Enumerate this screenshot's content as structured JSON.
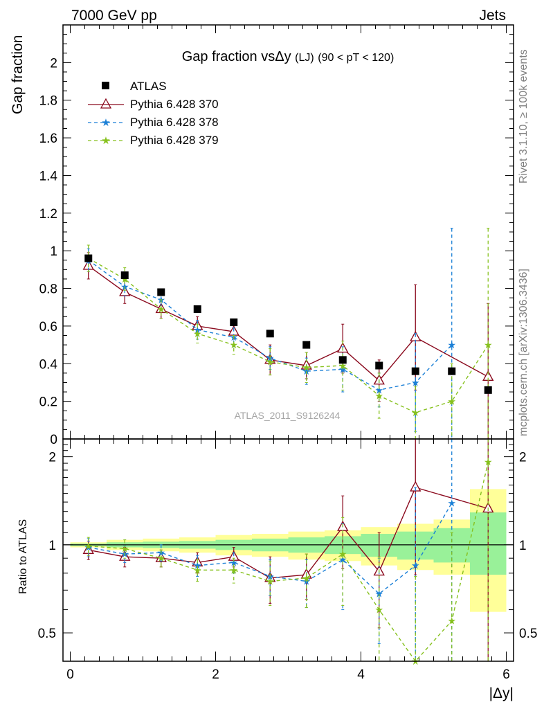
{
  "header": {
    "left": "7000 GeV pp",
    "right": "Jets"
  },
  "side_labels": {
    "rivet": "Rivet 3.1.10, ≥ 100k events",
    "mcplots": "mcplots.cern.ch [arXiv:1306.3436]"
  },
  "colors": {
    "atlas": "#000000",
    "p370": "#8b0a1e",
    "p378": "#1a7fd6",
    "p379": "#86c11d",
    "band_outer": "#ffff99",
    "band_inner": "#99f199"
  },
  "chart_data": [
    {
      "type": "scatter",
      "title": "Gap fraction vsΔy",
      "title_extra": "(LJ)",
      "title_range": "(90 < pT < 120)",
      "watermark": "ATLAS_2011_S9126244",
      "ylabel": "Gap fraction",
      "xlim": [
        -0.1,
        6.1
      ],
      "ylim": [
        0,
        2.2
      ],
      "y_ticks": [
        "0",
        "0.2",
        "0.4",
        "0.6",
        "0.8",
        "1",
        "1.2",
        "1.4",
        "1.6",
        "1.8",
        "2"
      ],
      "x": [
        0.25,
        0.75,
        1.25,
        1.75,
        2.25,
        2.75,
        3.25,
        3.75,
        4.25,
        4.75,
        5.25,
        5.75
      ],
      "series": [
        {
          "name": "ATLAS",
          "values": [
            0.96,
            0.87,
            0.78,
            0.69,
            0.62,
            0.56,
            0.5,
            0.42,
            0.39,
            0.36,
            0.36,
            0.26
          ]
        },
        {
          "name": "Pythia 6.428 370",
          "values": [
            0.92,
            0.78,
            0.69,
            0.6,
            0.57,
            0.42,
            0.39,
            0.48,
            0.31,
            0.54,
            null,
            0.33
          ],
          "err": [
            0.07,
            0.06,
            0.05,
            0.05,
            0.04,
            0.08,
            0.07,
            0.13,
            0.11,
            0.28,
            null,
            0.39
          ]
        },
        {
          "name": "Pythia 6.428 378",
          "values": [
            0.95,
            0.81,
            0.74,
            0.58,
            0.54,
            0.43,
            0.36,
            0.37,
            0.26,
            0.3,
            0.5,
            null
          ],
          "err": [
            0.06,
            0.05,
            0.05,
            0.05,
            0.05,
            0.06,
            0.07,
            0.12,
            0.09,
            0.26,
            0.62,
            null
          ]
        },
        {
          "name": "Pythia 6.428 379",
          "values": [
            0.96,
            0.85,
            0.69,
            0.56,
            0.5,
            0.41,
            0.38,
            0.39,
            0.23,
            0.14,
            0.2,
            0.5
          ],
          "err": [
            0.07,
            0.06,
            0.05,
            0.05,
            0.05,
            0.07,
            0.08,
            0.13,
            0.12,
            0.14,
            0.2,
            0.62
          ]
        }
      ]
    },
    {
      "type": "scatter",
      "xlabel": "|Δy|",
      "ylabel": "Ratio to ATLAS",
      "xlim": [
        -0.1,
        6.1
      ],
      "ylim": [
        0.4,
        2.3
      ],
      "x_ticks": [
        "0",
        "2",
        "4",
        "6"
      ],
      "y_ticks": [
        "0.5",
        "1",
        "2"
      ],
      "x": [
        0.25,
        0.75,
        1.25,
        1.75,
        2.25,
        2.75,
        3.25,
        3.75,
        4.25,
        4.75,
        5.25,
        5.75
      ],
      "bands": [
        {
          "lo": 0.99,
          "hi": 1.01,
          "lo_outer": 0.98,
          "hi_outer": 1.02
        },
        {
          "lo": 0.98,
          "hi": 1.02,
          "lo_outer": 0.96,
          "hi_outer": 1.04
        },
        {
          "lo": 0.975,
          "hi": 1.025,
          "lo_outer": 0.95,
          "hi_outer": 1.05
        },
        {
          "lo": 0.97,
          "hi": 1.03,
          "lo_outer": 0.94,
          "hi_outer": 1.06
        },
        {
          "lo": 0.96,
          "hi": 1.04,
          "lo_outer": 0.92,
          "hi_outer": 1.08
        },
        {
          "lo": 0.95,
          "hi": 1.05,
          "lo_outer": 0.91,
          "hi_outer": 1.09
        },
        {
          "lo": 0.94,
          "hi": 1.06,
          "lo_outer": 0.89,
          "hi_outer": 1.11
        },
        {
          "lo": 0.93,
          "hi": 1.07,
          "lo_outer": 0.88,
          "hi_outer": 1.12
        },
        {
          "lo": 0.91,
          "hi": 1.09,
          "lo_outer": 0.85,
          "hi_outer": 1.15
        },
        {
          "lo": 0.89,
          "hi": 1.11,
          "lo_outer": 0.82,
          "hi_outer": 1.18
        },
        {
          "lo": 0.87,
          "hi": 1.14,
          "lo_outer": 0.79,
          "hi_outer": 1.22
        },
        {
          "lo": 0.79,
          "hi": 1.29,
          "lo_outer": 0.59,
          "hi_outer": 1.55
        }
      ],
      "series": [
        {
          "name": "Pythia 6.428 370",
          "values": [
            0.96,
            0.91,
            0.9,
            0.87,
            0.91,
            0.77,
            0.79,
            1.15,
            0.81,
            1.57,
            null,
            1.33
          ],
          "err": [
            0.07,
            0.07,
            0.06,
            0.07,
            0.07,
            0.14,
            0.14,
            0.32,
            0.29,
            0.78,
            null,
            1.5
          ]
        },
        {
          "name": "Pythia 6.428 378",
          "values": [
            0.98,
            0.93,
            0.94,
            0.85,
            0.87,
            0.78,
            0.75,
            0.89,
            0.68,
            0.85,
            1.39,
            null
          ],
          "err": [
            0.07,
            0.06,
            0.06,
            0.07,
            0.07,
            0.11,
            0.14,
            0.29,
            0.22,
            0.72,
            1.72,
            null
          ]
        },
        {
          "name": "Pythia 6.428 379",
          "values": [
            0.99,
            0.97,
            0.9,
            0.82,
            0.82,
            0.75,
            0.77,
            0.93,
            0.6,
            0.39,
            0.55,
            1.92
          ],
          "err": [
            0.07,
            0.07,
            0.06,
            0.07,
            0.08,
            0.13,
            0.16,
            0.31,
            0.31,
            0.39,
            0.55,
            2.4
          ]
        }
      ]
    }
  ]
}
